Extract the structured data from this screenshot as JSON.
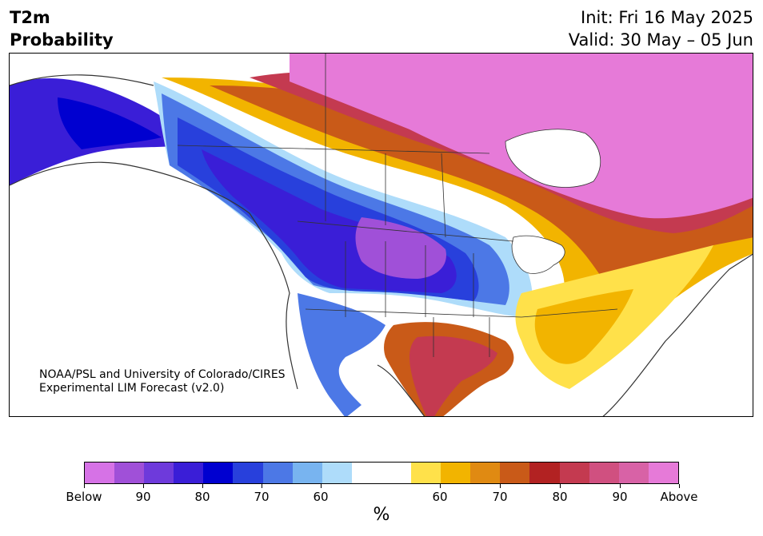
{
  "header": {
    "variable": "T2m",
    "subtitle": "Probability",
    "init": "Init: Fri 16 May 2025",
    "valid": "Valid: 30 May – 05 Jun"
  },
  "credit": {
    "line1": "NOAA/PSL and University of Colorado/CIRES",
    "line2": "Experimental LIM Forecast (v2.0)"
  },
  "colorbar": {
    "colors": [
      "#d672e6",
      "#a050d8",
      "#6e3adb",
      "#3a1ed7",
      "#0000d0",
      "#2840dc",
      "#4c78e6",
      "#78b4f0",
      "#aedcfa",
      "#ffffff",
      "#ffffff",
      "#ffe14a",
      "#f2b400",
      "#e08a12",
      "#c95a18",
      "#b22222",
      "#c43a50",
      "#d05080",
      "#d862a6",
      "#e67ad8"
    ],
    "labels": [
      "Below",
      "90",
      "80",
      "70",
      "60",
      "60",
      "70",
      "80",
      "90",
      "Above"
    ],
    "unit": "%"
  },
  "map": {
    "region": "North America",
    "colors": {
      "above_high": "#e67ad8",
      "above_mid": "#c43a50",
      "above_low": "#f2b400",
      "below_high": "#3a1ed7",
      "below_mid": "#2840dc",
      "below_low": "#aedcfa",
      "boundary": "#333333"
    }
  }
}
